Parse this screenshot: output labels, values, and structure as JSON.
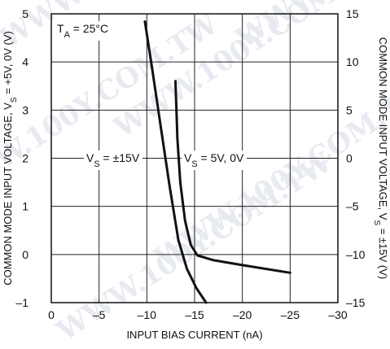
{
  "chart_data": {
    "type": "line",
    "title": "",
    "xlabel": "INPUT BIAS CURRENT (nA)",
    "ylabel_left": "COMMON MODE INPUT VOLTAGE, V_S = +5V, 0V (V)",
    "ylabel_right": "COMMON MODE INPUT VOLTAGE, V_S = ±15V (V)",
    "xlim": [
      0,
      -30
    ],
    "ylim_left": [
      -1,
      5
    ],
    "ylim_right": [
      -15,
      15
    ],
    "x_ticks": [
      "0",
      "–5",
      "–10",
      "–15",
      "–20",
      "–25",
      "–30"
    ],
    "y_left_ticks": [
      "–1",
      "0",
      "1",
      "2",
      "3",
      "4",
      "5"
    ],
    "y_right_ticks": [
      "–15",
      "–10",
      "–5",
      "0",
      "5",
      "10",
      "15"
    ],
    "grid": true,
    "annotations": {
      "temperature": "T_A = 25°C",
      "series_a_label": "V_S = ±15V",
      "series_b_label": "V_S = 5V, 0V"
    },
    "series": [
      {
        "name": "V_S = ±15V",
        "axis": "right",
        "x": [
          -9.8,
          -10.6,
          -11.5,
          -12.4,
          -13.3,
          -14.2,
          -15.2,
          -16.2
        ],
        "y": [
          14.2,
          9,
          3,
          -3,
          -8.5,
          -11.5,
          -13.5,
          -15
        ]
      },
      {
        "name": "V_S = 5V, 0V",
        "axis": "left",
        "x": [
          -13.0,
          -13.2,
          -13.5,
          -14.0,
          -14.6,
          -15.3,
          -17.0,
          -20.0,
          -25.0
        ],
        "y": [
          3.6,
          2.4,
          1.5,
          0.7,
          0.2,
          -0.02,
          -0.12,
          -0.22,
          -0.38
        ]
      }
    ]
  },
  "watermark": "WWW.100Y.COM.TW"
}
